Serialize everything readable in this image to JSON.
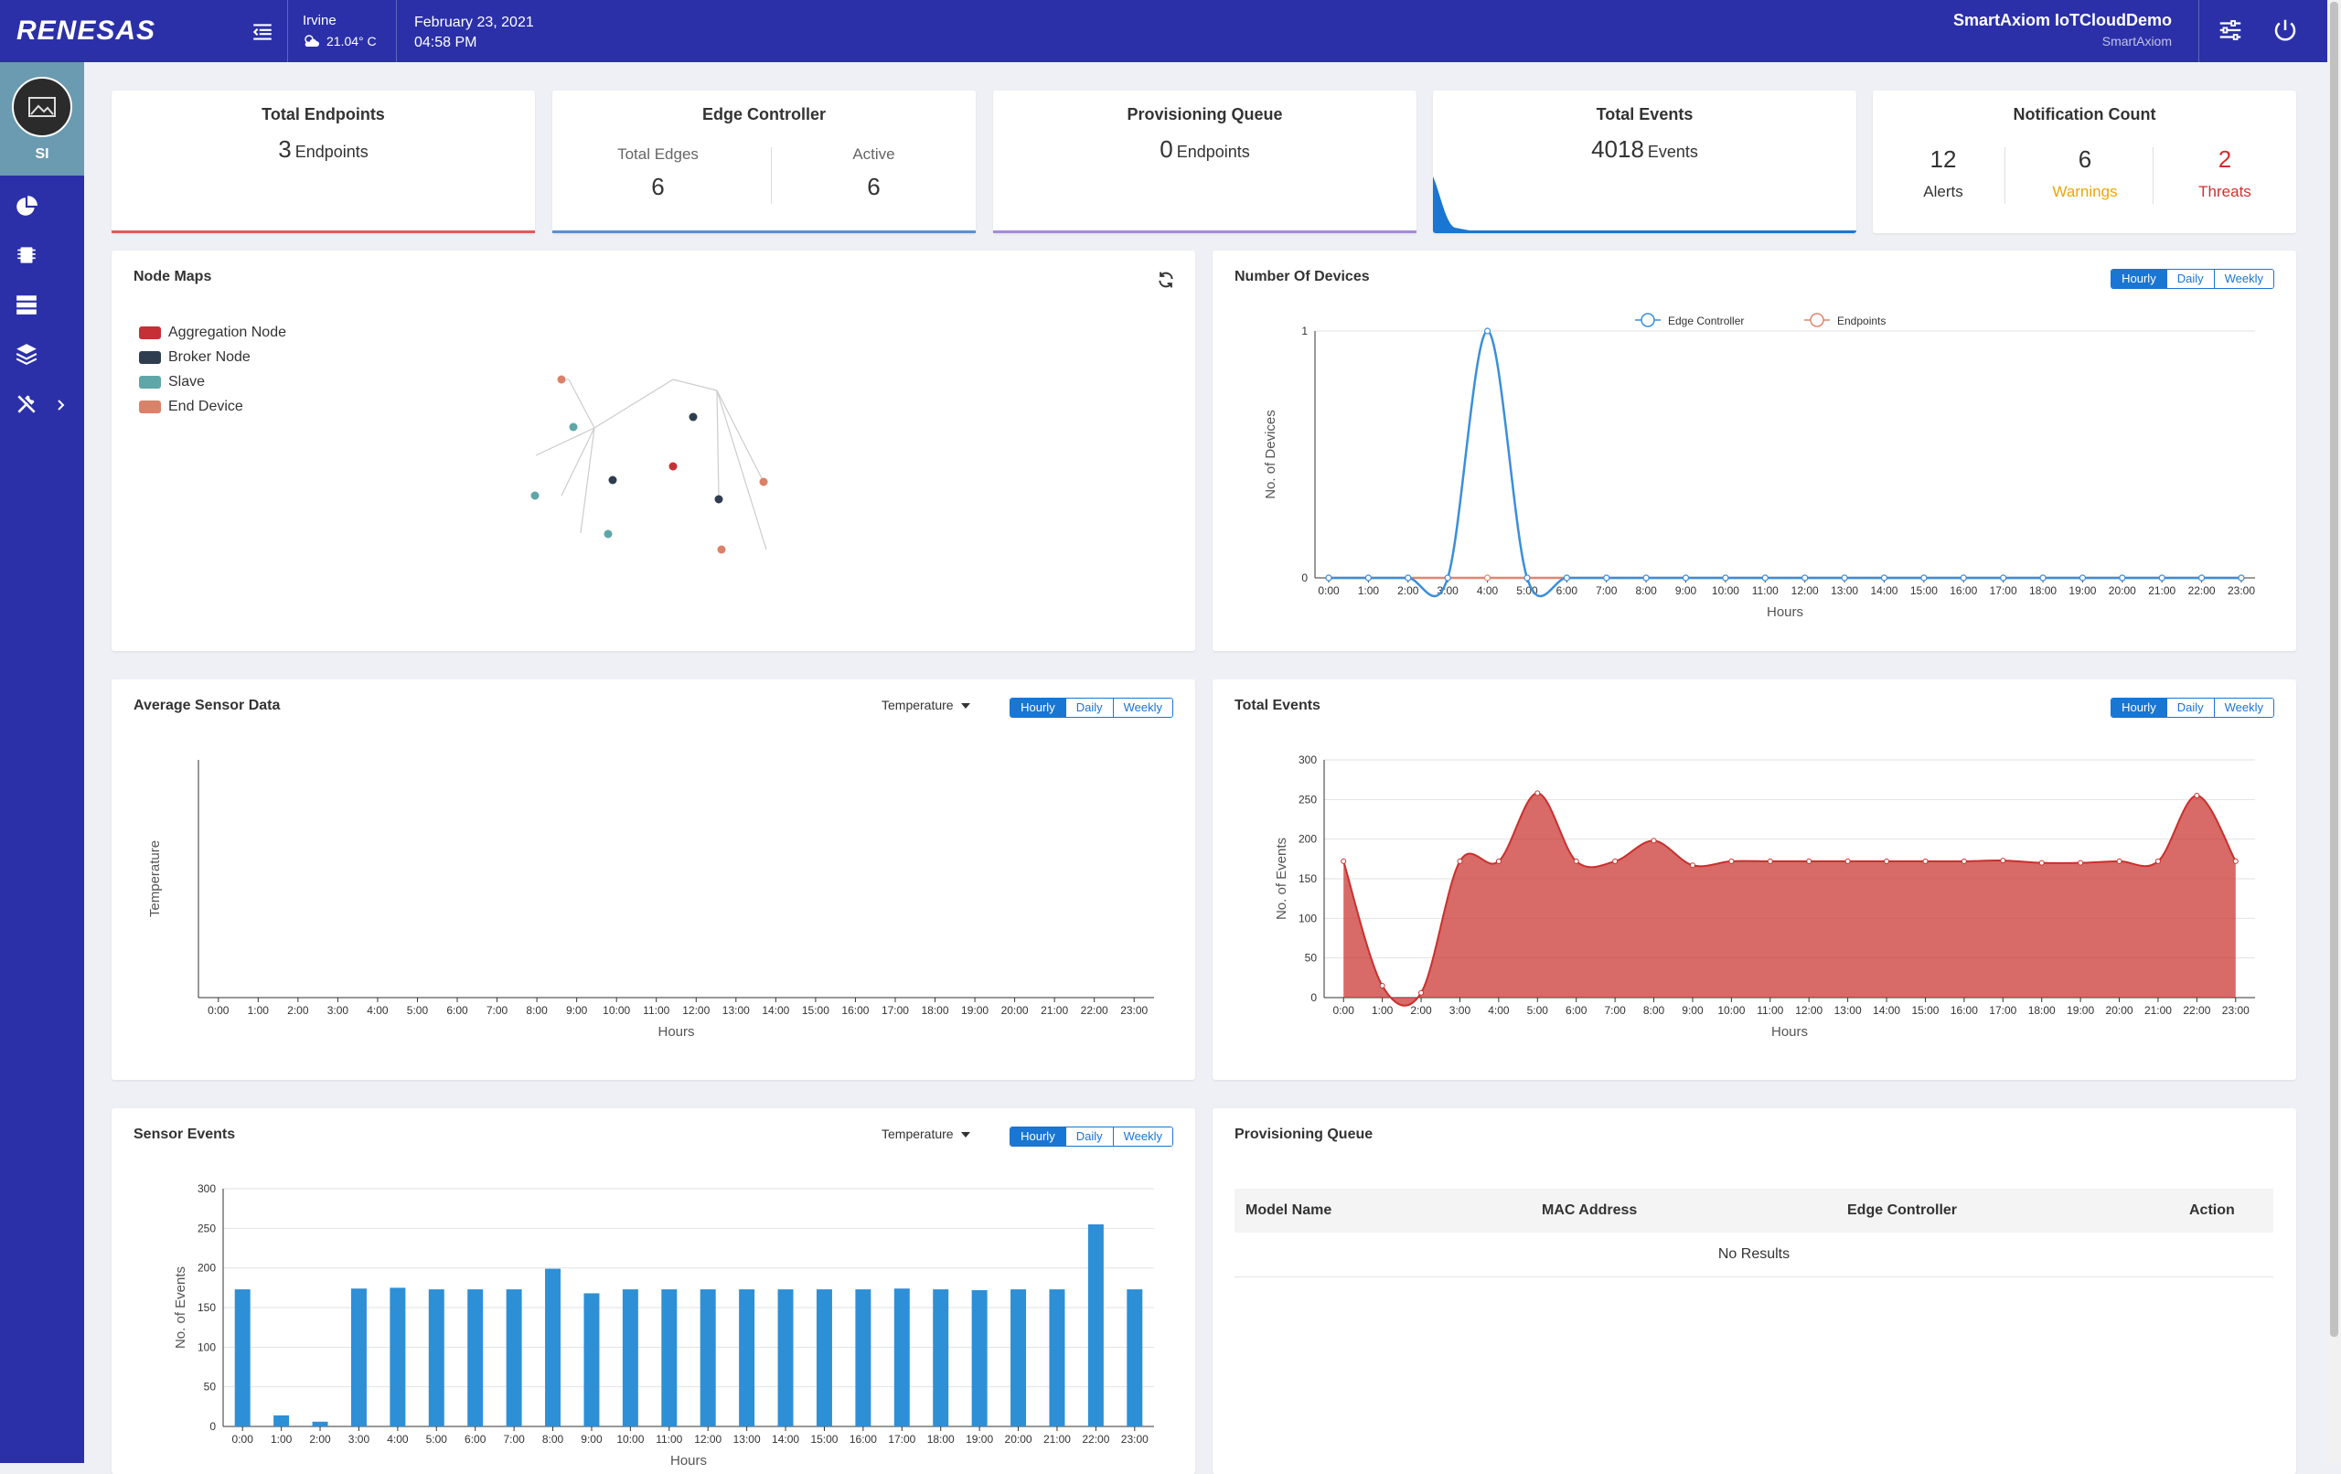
{
  "header": {
    "brand": "RENESAS",
    "location": "Irvine",
    "temperature": "21.04° C",
    "date": "February 23, 2021",
    "time": "04:58 PM",
    "user_name": "SmartAxiom IoTCloudDemo",
    "user_org": "SmartAxiom"
  },
  "sidebar": {
    "initials": "SI",
    "items": [
      {
        "icon": "pie-chart-icon"
      },
      {
        "icon": "chip-icon"
      },
      {
        "icon": "server-icon"
      },
      {
        "icon": "layers-icon"
      },
      {
        "icon": "tools-icon"
      }
    ]
  },
  "stats": {
    "total_endpoints": {
      "title": "Total Endpoints",
      "value": "3",
      "unit": "Endpoints",
      "color": "#e05a5a"
    },
    "edge_controller": {
      "title": "Edge Controller",
      "total_label": "Total Edges",
      "total_value": "6",
      "active_label": "Active",
      "active_value": "6",
      "color": "#5b8fd6"
    },
    "provisioning": {
      "title": "Provisioning Queue",
      "value": "0",
      "unit": "Endpoints",
      "color": "#a58bd8"
    },
    "total_events": {
      "title": "Total Events",
      "value": "4018",
      "unit": "Events",
      "color": "#1976d2"
    },
    "notifications": {
      "title": "Notification Count",
      "alerts_value": "12",
      "alerts_label": "Alerts",
      "warnings_value": "6",
      "warnings_label": "Warnings",
      "threats_value": "2",
      "threats_label": "Threats",
      "warning_color": "#f0a500",
      "threat_color": "#d32f2f"
    }
  },
  "node_maps": {
    "title": "Node Maps",
    "legend": [
      {
        "label": "Aggregation Node",
        "color": "#c62f35"
      },
      {
        "label": "Broker Node",
        "color": "#2e3d4f"
      },
      {
        "label": "Slave",
        "color": "#5fa6a8"
      },
      {
        "label": "End Device",
        "color": "#d9826a"
      }
    ]
  },
  "toggles": {
    "hourly": "Hourly",
    "daily": "Daily",
    "weekly": "Weekly"
  },
  "selects": {
    "sensor_type": "Temperature"
  },
  "panels": {
    "num_devices": "Number Of Devices",
    "avg_sensor": "Average Sensor Data",
    "total_events": "Total Events",
    "sensor_events": "Sensor Events",
    "prov_queue": "Provisioning Queue"
  },
  "provisioning_table": {
    "columns": [
      "Model Name",
      "MAC Address",
      "Edge Controller",
      "Action"
    ],
    "empty": "No Results"
  },
  "chart_data": [
    {
      "type": "line",
      "title": "Number Of Devices",
      "xlabel": "Hours",
      "ylabel": "No. of Devices",
      "ylim": [
        0,
        1
      ],
      "yticks": [
        0,
        1
      ],
      "categories": [
        "0:00",
        "1:00",
        "2:00",
        "3:00",
        "4:00",
        "5:00",
        "6:00",
        "7:00",
        "8:00",
        "9:00",
        "10:00",
        "11:00",
        "12:00",
        "13:00",
        "14:00",
        "15:00",
        "16:00",
        "17:00",
        "18:00",
        "19:00",
        "20:00",
        "21:00",
        "22:00",
        "23:00"
      ],
      "series": [
        {
          "name": "Edge Controller",
          "color": "#3a8edb",
          "values": [
            0,
            0,
            0,
            0,
            1,
            0,
            0,
            0,
            0,
            0,
            0,
            0,
            0,
            0,
            0,
            0,
            0,
            0,
            0,
            0,
            0,
            0,
            0,
            0
          ]
        },
        {
          "name": "Endpoints",
          "color": "#e0866e",
          "values": [
            0,
            0,
            0,
            0,
            0,
            0,
            0,
            0,
            0,
            0,
            0,
            0,
            0,
            0,
            0,
            0,
            0,
            0,
            0,
            0,
            0,
            0,
            0,
            0
          ]
        }
      ],
      "legend": "top-center",
      "grid": true
    },
    {
      "type": "line",
      "title": "Average Sensor Data",
      "xlabel": "Hours",
      "ylabel": "Temperature",
      "categories": [
        "0:00",
        "1:00",
        "2:00",
        "3:00",
        "4:00",
        "5:00",
        "6:00",
        "7:00",
        "8:00",
        "9:00",
        "10:00",
        "11:00",
        "12:00",
        "13:00",
        "14:00",
        "15:00",
        "16:00",
        "17:00",
        "18:00",
        "19:00",
        "20:00",
        "21:00",
        "22:00",
        "23:00"
      ],
      "series": []
    },
    {
      "type": "area",
      "title": "Total Events",
      "xlabel": "Hours",
      "ylabel": "No. of Events",
      "ylim": [
        0,
        300
      ],
      "yticks": [
        0,
        50,
        100,
        150,
        200,
        250,
        300
      ],
      "categories": [
        "0:00",
        "1:00",
        "2:00",
        "3:00",
        "4:00",
        "5:00",
        "6:00",
        "7:00",
        "8:00",
        "9:00",
        "10:00",
        "11:00",
        "12:00",
        "13:00",
        "14:00",
        "15:00",
        "16:00",
        "17:00",
        "18:00",
        "19:00",
        "20:00",
        "21:00",
        "22:00",
        "23:00"
      ],
      "series": [
        {
          "color": "#c9302c",
          "values": [
            172,
            15,
            6,
            172,
            172,
            258,
            172,
            172,
            198,
            167,
            172,
            172,
            172,
            172,
            172,
            172,
            172,
            173,
            170,
            170,
            172,
            172,
            255,
            172
          ]
        }
      ],
      "grid": true
    },
    {
      "type": "bar",
      "title": "Sensor Events",
      "xlabel": "Hours",
      "ylabel": "No. of Events",
      "ylim": [
        0,
        300
      ],
      "yticks": [
        0,
        50,
        100,
        150,
        200,
        250,
        300
      ],
      "categories": [
        "0:00",
        "1:00",
        "2:00",
        "3:00",
        "4:00",
        "5:00",
        "6:00",
        "7:00",
        "8:00",
        "9:00",
        "10:00",
        "11:00",
        "12:00",
        "13:00",
        "14:00",
        "15:00",
        "16:00",
        "17:00",
        "18:00",
        "19:00",
        "20:00",
        "21:00",
        "22:00",
        "23:00"
      ],
      "series": [
        {
          "color": "#2d8fd6",
          "values": [
            173,
            14,
            6,
            174,
            175,
            173,
            173,
            173,
            199,
            168,
            173,
            173,
            173,
            173,
            173,
            173,
            173,
            174,
            173,
            172,
            173,
            173,
            255,
            173
          ]
        }
      ],
      "grid": true
    }
  ]
}
